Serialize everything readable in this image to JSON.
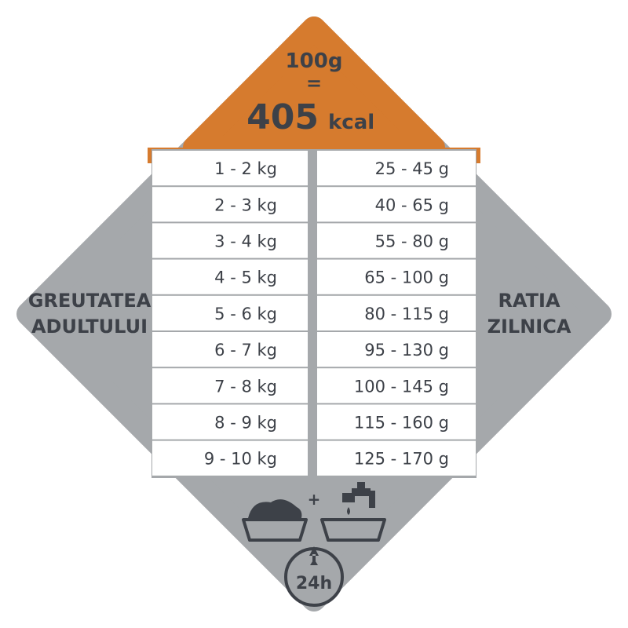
{
  "header": {
    "weight": "100g",
    "equals": "=",
    "energy": "405",
    "unit": "kcal"
  },
  "left_label": [
    "GREUTATEA",
    "ADULTULUI"
  ],
  "right_label": [
    "RATIA",
    "ZILNICA"
  ],
  "table": {
    "rows": [
      [
        "1 - 2 kg",
        "25 - 45 g"
      ],
      [
        "2 - 3 kg",
        "40 - 65 g"
      ],
      [
        "3 - 4 kg",
        "55 - 80 g"
      ],
      [
        "4 - 5 kg",
        "65 - 100 g"
      ],
      [
        "5 - 6 kg",
        "80 - 115 g"
      ],
      [
        "6 - 7 kg",
        "95 - 130 g"
      ],
      [
        "7 - 8 kg",
        "100 - 145 g"
      ],
      [
        "8 - 9 kg",
        "115 - 160 g"
      ],
      [
        "9 - 10 kg",
        "125 - 170 g"
      ]
    ]
  },
  "footer": {
    "plus": "+",
    "duration": "24h"
  }
}
